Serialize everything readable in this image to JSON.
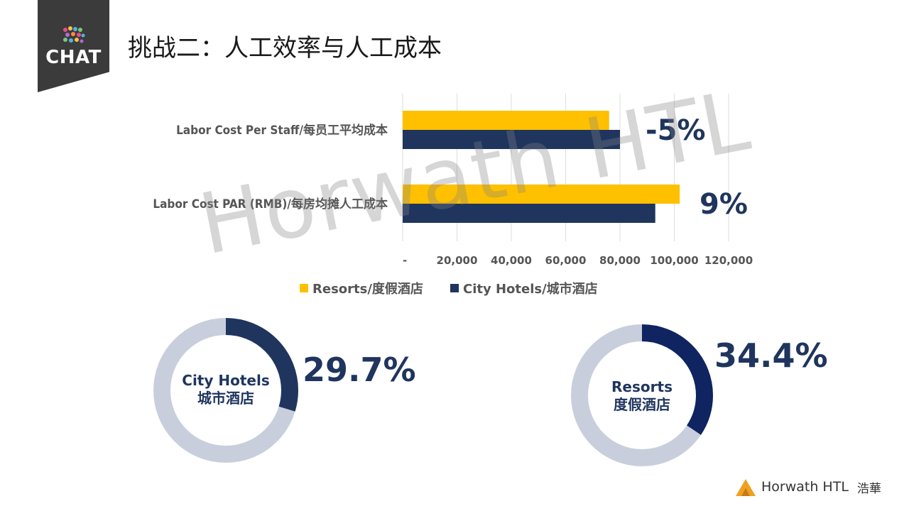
{
  "logo": {
    "text": "CHAT"
  },
  "page": {
    "title": "挑战二：人工效率与人工成本"
  },
  "watermark": "Horwath HTL",
  "colors": {
    "resorts": "#FFC000",
    "city": "#1F355E",
    "donut_track": "#C8CEDC",
    "accent": "#1F355E"
  },
  "chart_data": [
    {
      "type": "bar",
      "orientation": "horizontal",
      "categories": [
        "Labor Cost Per Staff/每员工平均成本",
        "Labor Cost PAR (RMB)/每房均摊人工成本"
      ],
      "series": [
        {
          "name": "Resorts/度假酒店",
          "values": [
            76000,
            102000
          ]
        },
        {
          "name": "City Hotels/城市酒店",
          "values": [
            80000,
            93000
          ]
        }
      ],
      "annotations": [
        "-5%",
        "9%"
      ],
      "xticks": [
        "-",
        "20,000",
        "40,000",
        "60,000",
        "80,000",
        "100,000",
        "120,000"
      ],
      "xlim": [
        0,
        120000
      ],
      "grid": true,
      "legend": "bottom"
    },
    {
      "type": "pie",
      "variant": "donut",
      "center_label": [
        "City Hotels",
        "城市酒店"
      ],
      "value": 29.7,
      "label": "29.7%"
    },
    {
      "type": "pie",
      "variant": "donut",
      "center_label": [
        "Resorts",
        "度假酒店"
      ],
      "value": 34.4,
      "label": "34.4%"
    }
  ],
  "footer": {
    "brand": "Horwath HTL",
    "brand_cn": "浩華"
  }
}
